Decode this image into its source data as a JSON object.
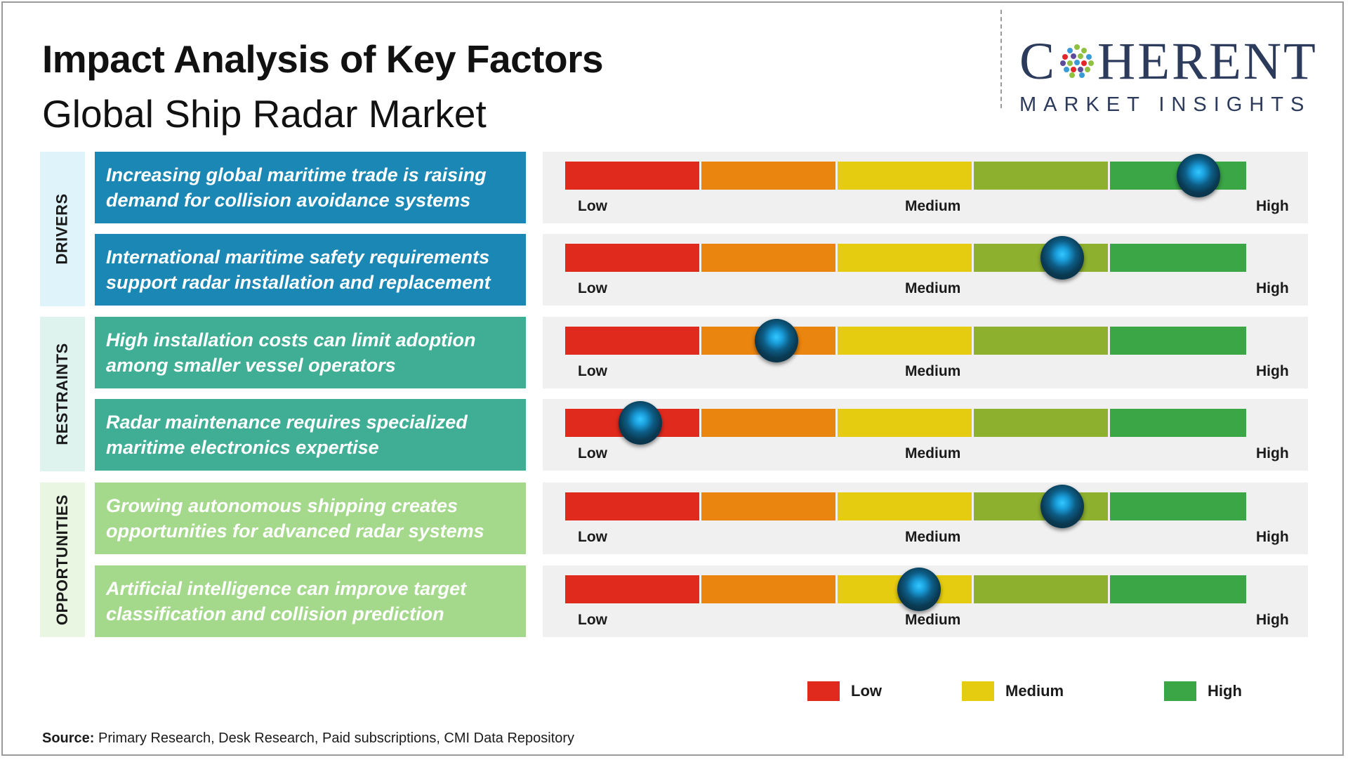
{
  "title": "Impact Analysis of Key Factors",
  "subtitle": "Global Ship Radar Market",
  "logo": {
    "main_before": "C",
    "main_after": "HERENT",
    "sub": "MARKET INSIGHTS"
  },
  "colors": {
    "low": "#e02a1d",
    "low_mid": "#ea8510",
    "medium": "#e6cc10",
    "mid_high": "#8db02e",
    "high": "#3aa645",
    "drivers": "#1b87b4",
    "drivers_light": "#dff3fb",
    "restraints": "#3fae95",
    "restraints_light": "#dff3ee",
    "opportunities": "#a4d98b",
    "opportunities_light": "#e8f6e2"
  },
  "scale_labels": {
    "low": "Low",
    "medium": "Medium",
    "high": "High"
  },
  "chart_data": {
    "type": "table",
    "scale": [
      "Low",
      "Medium",
      "High"
    ],
    "categories": [
      {
        "name": "DRIVERS",
        "factors": [
          {
            "text": "Increasing global maritime trade is raising demand for collision avoidance systems",
            "impact": 0.93
          },
          {
            "text": "International maritime safety requirements support radar installation and replacement",
            "impact": 0.73
          }
        ]
      },
      {
        "name": "RESTRAINTS",
        "factors": [
          {
            "text": "High installation costs can limit adoption among smaller vessel operators",
            "impact": 0.31
          },
          {
            "text": "Radar maintenance requires specialized maritime electronics expertise",
            "impact": 0.11
          }
        ]
      },
      {
        "name": "OPPORTUNITIES",
        "factors": [
          {
            "text": "Growing autonomous shipping creates opportunities for advanced radar systems",
            "impact": 0.73
          },
          {
            "text": "Artificial intelligence can improve target classification and collision prediction",
            "impact": 0.52
          }
        ]
      }
    ]
  },
  "legend": [
    {
      "label": "Low",
      "color": "#e02a1d"
    },
    {
      "label": "Medium",
      "color": "#e6cc10"
    },
    {
      "label": "High",
      "color": "#3aa645"
    }
  ],
  "source": {
    "label": "Source:",
    "text": "Primary Research, Desk Research, Paid subscriptions, CMI Data Repository"
  }
}
